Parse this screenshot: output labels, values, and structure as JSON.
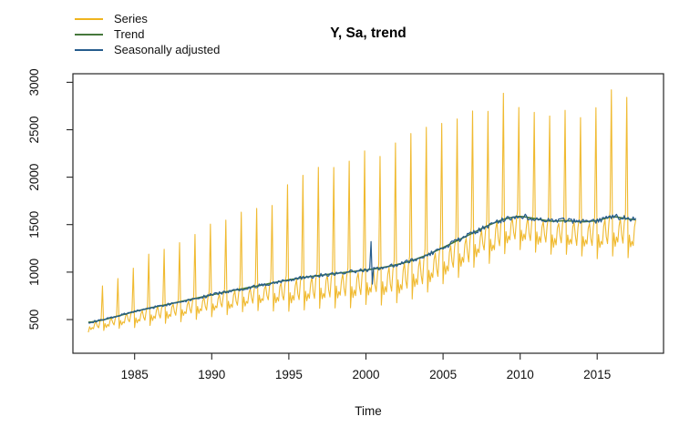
{
  "page": {
    "background": "#ffffff",
    "axis_color": "#262626",
    "text_color": "#111111"
  },
  "chart_data": {
    "type": "line",
    "title": "Y, Sa, trend",
    "xlabel": "Time",
    "ylabel": "",
    "x_ticks": [
      1985,
      1990,
      1995,
      2000,
      2005,
      2010,
      2015
    ],
    "y_ticks": [
      500,
      1000,
      1500,
      2000,
      2500,
      3000
    ],
    "xlim": [
      1981.0,
      2019.3
    ],
    "ylim": [
      145,
      3090
    ],
    "grid": false,
    "legend_position": "top-left",
    "frequency": 12,
    "start_year": 1982,
    "n_months": 427,
    "time_range": [
      1982.0,
      2017.5
    ],
    "series": [
      {
        "name": "Series",
        "color": "#EFB41E"
      },
      {
        "name": "Trend",
        "color": "#45783C"
      },
      {
        "name": "Seasonally adjusted",
        "color": "#265C8D"
      }
    ],
    "trend_knot_start_year": 1982,
    "trend_knots": [
      468,
      498,
      540,
      585,
      622,
      655,
      690,
      725,
      760,
      795,
      825,
      855,
      888,
      918,
      945,
      965,
      985,
      1003,
      1022,
      1045,
      1078,
      1122,
      1182,
      1258,
      1338,
      1418,
      1498,
      1562,
      1590,
      1562,
      1535,
      1542,
      1528,
      1542,
      1588,
      1560,
      1540
    ],
    "dec_peak_start_year": 1982,
    "dec_peaks": [
      860,
      940,
      1030,
      1200,
      1250,
      1320,
      1410,
      1490,
      1540,
      1640,
      1660,
      1720,
      1900,
      2020,
      2080,
      2100,
      2150,
      2250,
      2200,
      2350,
      2450,
      2500,
      2570,
      2630,
      2720,
      2700,
      2880,
      2750,
      2700,
      2650,
      2680,
      2650,
      2720,
      2900,
      2850
    ],
    "seasonal_factors": [
      0.7,
      0.88,
      0.78,
      0.84,
      0.8,
      0.94,
      0.99,
      0.86,
      0.8,
      0.96,
      1.04,
      1.95
    ],
    "sa_outliers": [
      {
        "month_index": 220,
        "delta": 285
      },
      {
        "month_index": 221,
        "delta": -150
      }
    ],
    "noise": {
      "series_pct": 0.012,
      "sa_base": 4,
      "sa_slope": 0.016,
      "seed_series": 12.9898,
      "seed_sa": 78.233
    }
  }
}
